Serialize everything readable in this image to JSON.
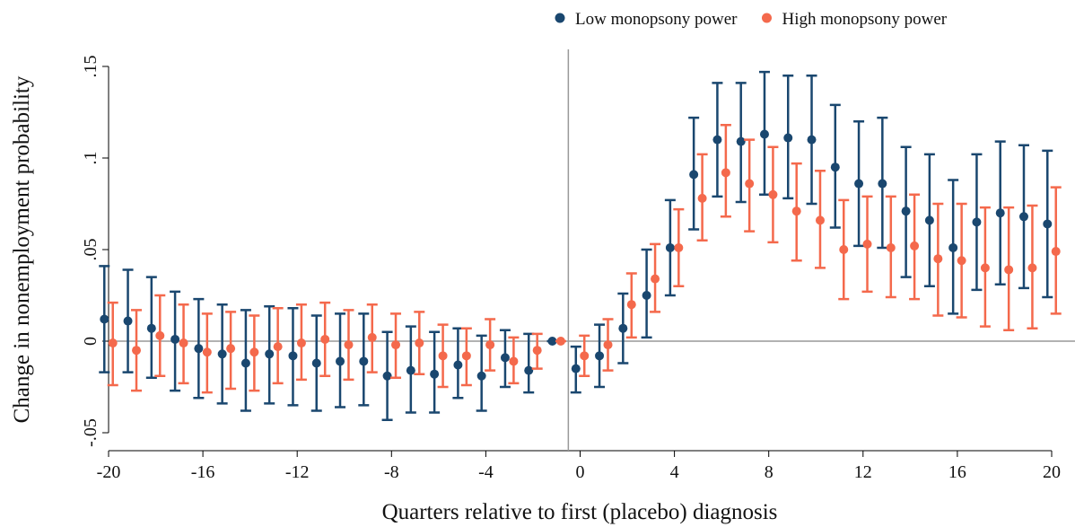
{
  "chart_data": {
    "type": "errorbar",
    "x_label": "Quarters relative to first (placebo) diagnosis",
    "y_label": "Change in nonemployment probability",
    "x": [
      -20,
      -19,
      -18,
      -17,
      -16,
      -15,
      -14,
      -13,
      -12,
      -11,
      -10,
      -9,
      -8,
      -7,
      -6,
      -5,
      -4,
      -3,
      -2,
      -1,
      0,
      1,
      2,
      3,
      4,
      5,
      6,
      7,
      8,
      9,
      10,
      11,
      12,
      13,
      14,
      15,
      16,
      17,
      18,
      19,
      20
    ],
    "series": [
      {
        "name": "Low monopsony power",
        "color": "#1a476f",
        "values": [
          0.012,
          0.011,
          0.007,
          0.001,
          -0.004,
          -0.007,
          -0.012,
          -0.007,
          -0.008,
          -0.012,
          -0.011,
          -0.011,
          -0.019,
          -0.016,
          -0.018,
          -0.013,
          -0.019,
          -0.009,
          -0.016,
          0,
          -0.015,
          -0.008,
          0.007,
          0.025,
          0.051,
          0.091,
          0.11,
          0.109,
          0.113,
          0.111,
          0.11,
          0.095,
          0.086,
          0.086,
          0.071,
          0.066,
          0.051,
          0.065,
          0.07,
          0.068,
          0.064
        ],
        "ci_low": [
          -0.017,
          -0.017,
          -0.02,
          -0.027,
          -0.031,
          -0.034,
          -0.038,
          -0.034,
          -0.035,
          -0.038,
          -0.036,
          -0.035,
          -0.043,
          -0.039,
          -0.039,
          -0.031,
          -0.038,
          -0.025,
          -0.028,
          0,
          -0.028,
          -0.025,
          -0.012,
          0.002,
          0.025,
          0.061,
          0.079,
          0.076,
          0.08,
          0.078,
          0.075,
          0.062,
          0.052,
          0.051,
          0.035,
          0.03,
          0.015,
          0.028,
          0.031,
          0.029,
          0.024
        ],
        "ci_high": [
          0.041,
          0.039,
          0.035,
          0.027,
          0.023,
          0.02,
          0.017,
          0.019,
          0.018,
          0.014,
          0.015,
          0.015,
          0.005,
          0.008,
          0.005,
          0.007,
          0.003,
          0.006,
          0.004,
          0,
          -0.003,
          0.009,
          0.026,
          0.05,
          0.077,
          0.122,
          0.141,
          0.141,
          0.147,
          0.145,
          0.145,
          0.129,
          0.12,
          0.122,
          0.106,
          0.102,
          0.088,
          0.102,
          0.109,
          0.107,
          0.104
        ]
      },
      {
        "name": "High monopsony power",
        "color": "#f4694c",
        "values": [
          -0.001,
          -0.005,
          0.003,
          -0.001,
          -0.006,
          -0.004,
          -0.006,
          -0.003,
          -0.001,
          0.001,
          -0.002,
          0.002,
          -0.002,
          -0.001,
          -0.008,
          -0.008,
          -0.002,
          -0.011,
          -0.005,
          0,
          -0.008,
          -0.002,
          0.02,
          0.034,
          0.051,
          0.078,
          0.092,
          0.086,
          0.08,
          0.071,
          0.066,
          0.05,
          0.053,
          0.051,
          0.052,
          0.045,
          0.044,
          0.04,
          0.039,
          0.04,
          0.049
        ],
        "ci_low": [
          -0.024,
          -0.027,
          -0.019,
          -0.023,
          -0.028,
          -0.026,
          -0.027,
          -0.023,
          -0.021,
          -0.019,
          -0.021,
          -0.017,
          -0.02,
          -0.018,
          -0.025,
          -0.024,
          -0.016,
          -0.023,
          -0.015,
          0,
          -0.019,
          -0.016,
          0.002,
          0.016,
          0.03,
          0.055,
          0.068,
          0.06,
          0.054,
          0.044,
          0.04,
          0.023,
          0.027,
          0.024,
          0.023,
          0.014,
          0.013,
          0.008,
          0.006,
          0.007,
          0.015
        ],
        "ci_high": [
          0.021,
          0.017,
          0.025,
          0.02,
          0.015,
          0.016,
          0.014,
          0.018,
          0.02,
          0.021,
          0.017,
          0.02,
          0.015,
          0.016,
          0.009,
          0.007,
          0.012,
          0.002,
          0.004,
          0,
          0.003,
          0.012,
          0.037,
          0.053,
          0.072,
          0.102,
          0.118,
          0.11,
          0.106,
          0.097,
          0.093,
          0.077,
          0.079,
          0.079,
          0.08,
          0.075,
          0.075,
          0.073,
          0.073,
          0.074,
          0.084
        ]
      }
    ],
    "xlim": [
      -20,
      20
    ],
    "xticks": [
      -20,
      -16,
      -12,
      -8,
      -4,
      0,
      4,
      8,
      12,
      16,
      20
    ],
    "ylim": [
      -0.05,
      0.15
    ],
    "yticks": [
      {
        "value": -0.05,
        "label": "-.05"
      },
      0,
      {
        "value": 0.05,
        "label": ".05"
      },
      {
        "value": 0.1,
        "label": ".1"
      },
      {
        "value": 0.15,
        "label": ".15"
      }
    ],
    "xline": -0.5,
    "yline": 0,
    "legend": "top-right"
  }
}
